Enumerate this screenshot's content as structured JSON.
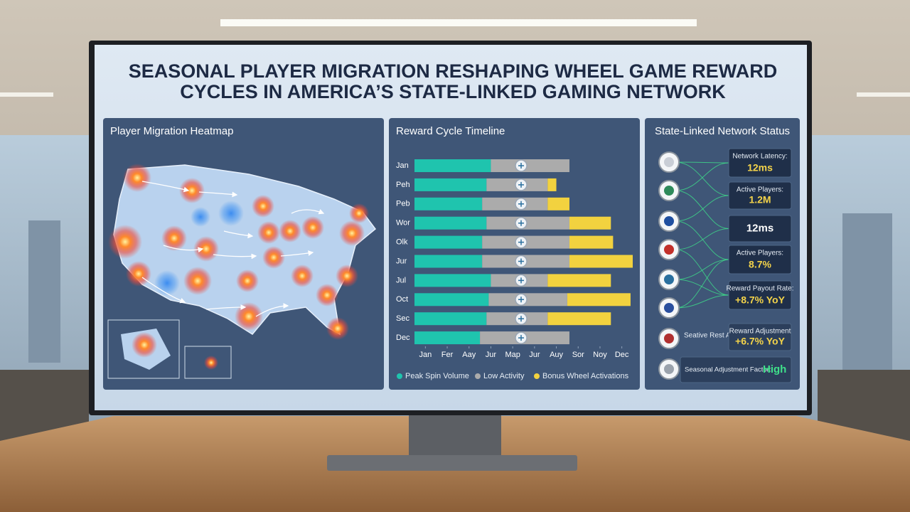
{
  "header": {
    "title_line1": "SEASONAL PLAYER MIGRATION RESHAPING WHEEL GAME REWARD",
    "title_line2": "CYCLES IN AMERICA’S STATE-LINKED GAMING NETWORK"
  },
  "heatmap": {
    "title": "Player Migration Heatmap"
  },
  "chart_data": {
    "type": "bar",
    "orientation": "horizontal",
    "stacked": true,
    "title": "Reward Cycle Timeline",
    "categories": [
      "Jan",
      "Peh",
      "Peb",
      "Wor",
      "Olk",
      "Jur",
      "Jul",
      "Oct",
      "Sec",
      "Dec"
    ],
    "series": [
      {
        "name": "Peak Spin Volume",
        "color": "#1fc4ae",
        "values": [
          3.5,
          3.3,
          3.1,
          3.3,
          3.1,
          3.1,
          3.5,
          3.4,
          3.3,
          3.0
        ]
      },
      {
        "name": "Low Activity",
        "color": "#ababab",
        "values": [
          3.6,
          2.8,
          3.0,
          3.8,
          4.0,
          4.0,
          2.6,
          3.6,
          2.8,
          4.1
        ]
      },
      {
        "name": "Bonus Wheel Activations",
        "color": "#f2d23f",
        "values": [
          0,
          0.4,
          1.0,
          1.9,
          2.0,
          2.9,
          2.9,
          2.9,
          2.9,
          0
        ]
      }
    ],
    "xlim": [
      0,
      10
    ],
    "xticks": [
      {
        "value": 0.5,
        "label": "Jan"
      },
      {
        "value": 1.5,
        "label": "Fer"
      },
      {
        "value": 2.5,
        "label": "Aay"
      },
      {
        "value": 3.5,
        "label": "Jur"
      },
      {
        "value": 4.5,
        "label": "Map"
      },
      {
        "value": 5.5,
        "label": "Jur"
      },
      {
        "value": 6.5,
        "label": "Auy"
      },
      {
        "value": 7.5,
        "label": "Sor"
      },
      {
        "value": 8.5,
        "label": "Noy"
      },
      {
        "value": 9.5,
        "label": "Dec"
      }
    ],
    "legend": "bottom"
  },
  "network": {
    "title": "State-Linked Network Status",
    "items": [
      {
        "label": "Network Latency:",
        "value": "12ms",
        "color": "#f3d34a"
      },
      {
        "label": "Active Players:",
        "value": "1.2M",
        "color": "#f3d34a"
      },
      {
        "value": "12ms",
        "color": "#ffffff"
      },
      {
        "label": "Active Players:",
        "value": "8.7%",
        "color": "#f3d34a"
      },
      {
        "label": "Reward Payout Rate:",
        "value": "+8.7% YoY",
        "color": "#f3d34a"
      },
      {
        "label": "Reward Adjustment",
        "value": "+6.7% YoY",
        "color": "#f3d34a"
      },
      {
        "label": "Seasonal Adjustment Factor:",
        "value": "High",
        "color": "#3fe08a"
      }
    ],
    "side_label": "Seative Rest Action:"
  }
}
